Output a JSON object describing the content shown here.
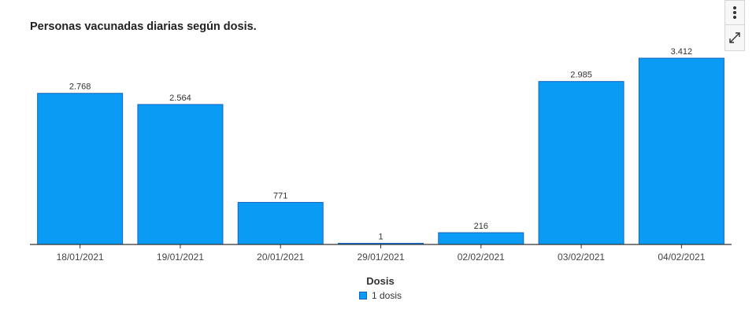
{
  "chart_data": {
    "type": "bar",
    "title": "Personas vacunadas diarias según dosis.",
    "categories": [
      "18/01/2021",
      "19/01/2021",
      "20/01/2021",
      "29/01/2021",
      "02/02/2021",
      "03/02/2021",
      "04/02/2021"
    ],
    "series": [
      {
        "name": "1 dosis",
        "values": [
          2768,
          2564,
          771,
          1,
          216,
          2985,
          3412
        ],
        "labels": [
          "2.768",
          "2.564",
          "771",
          "1",
          "216",
          "2.985",
          "3.412"
        ],
        "color": "#0a9bf5"
      }
    ],
    "xlabel": "",
    "ylabel": "",
    "ylim": [
      0,
      3412
    ],
    "grid": false,
    "legend": {
      "title": "Dosis",
      "placement": "bottom-center"
    }
  },
  "colors": {
    "bar": "#0a9bf5",
    "bar_border": "#1565c0",
    "axis": "#333333"
  },
  "toolbar": {
    "menu_icon": "vertical-dots-icon",
    "expand_icon": "expand-arrows-icon"
  }
}
